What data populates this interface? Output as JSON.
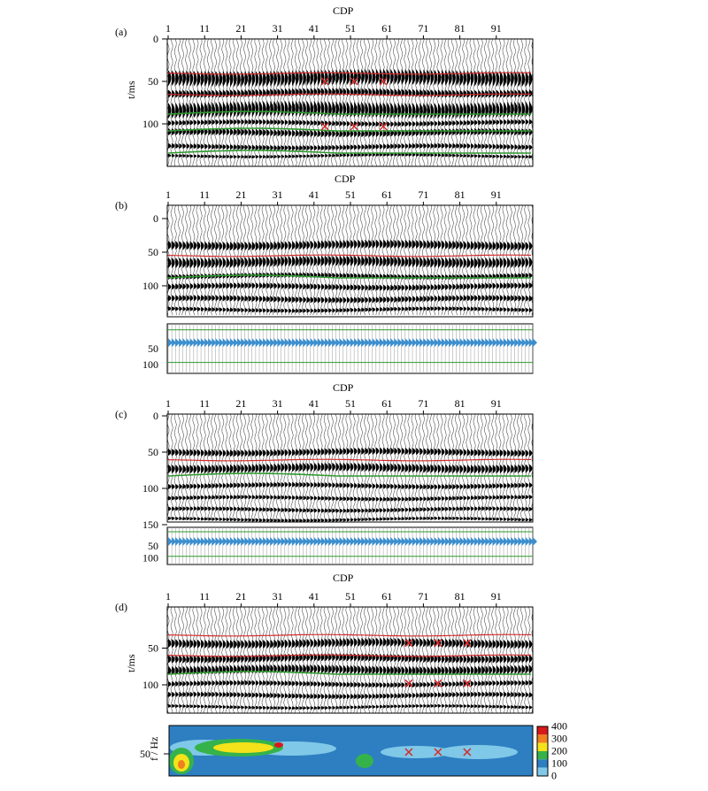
{
  "figure": {
    "axis_title": "CDP",
    "cdp_ticks": [
      "1",
      "11",
      "21",
      "31",
      "41",
      "51",
      "61",
      "71",
      "81",
      "91"
    ],
    "time_label": "t/ms",
    "freq_label": "f / Hz",
    "colors": {
      "trace": "#000000",
      "red_horizon": "#d42a2a",
      "green_horizon": "#2e9a2e",
      "blue_arrows": "#3a8fd0",
      "cross_marker": "#d42a2a"
    }
  },
  "panels": [
    {
      "id": "a",
      "label": "(a)",
      "show_cdp_title": true,
      "time_ticks": [
        "0",
        "50",
        "100"
      ],
      "show_time_label": true,
      "markers": [
        {
          "cdp": 44,
          "time": 50
        },
        {
          "cdp": 52,
          "time": 50
        },
        {
          "cdp": 60,
          "time": 50
        },
        {
          "cdp": 44,
          "time": 103
        },
        {
          "cdp": 52,
          "time": 103
        },
        {
          "cdp": 60,
          "time": 103
        }
      ],
      "sub_ticks": []
    },
    {
      "id": "b",
      "label": "(b)",
      "show_cdp_title": true,
      "time_ticks": [
        "0",
        "50",
        "100"
      ],
      "show_time_label": false,
      "markers": [],
      "sub_ticks": [
        "50",
        "100"
      ]
    },
    {
      "id": "c",
      "label": "(c)",
      "show_cdp_title": true,
      "time_ticks": [
        "0",
        "50",
        "100",
        "150"
      ],
      "show_time_label": false,
      "markers": [],
      "sub_ticks": [
        "50",
        "100"
      ]
    },
    {
      "id": "d",
      "label": "(d)",
      "show_cdp_title": true,
      "time_ticks": [
        "50",
        "100"
      ],
      "show_time_label": true,
      "markers": [
        {
          "cdp": 67,
          "time": 43
        },
        {
          "cdp": 75,
          "time": 43
        },
        {
          "cdp": 83,
          "time": 43
        },
        {
          "cdp": 67,
          "time": 98
        },
        {
          "cdp": 75,
          "time": 98
        },
        {
          "cdp": 83,
          "time": 98
        }
      ],
      "sub_ticks": []
    }
  ],
  "spectrum": {
    "y_tick": "50",
    "colorbar_ticks": [
      "400",
      "300",
      "200",
      "100",
      "0"
    ],
    "colorbar_colors": [
      "#d7191c",
      "#f07f1f",
      "#f4e21a",
      "#35b34a",
      "#2d7fc1",
      "#80c8e8"
    ]
  }
}
